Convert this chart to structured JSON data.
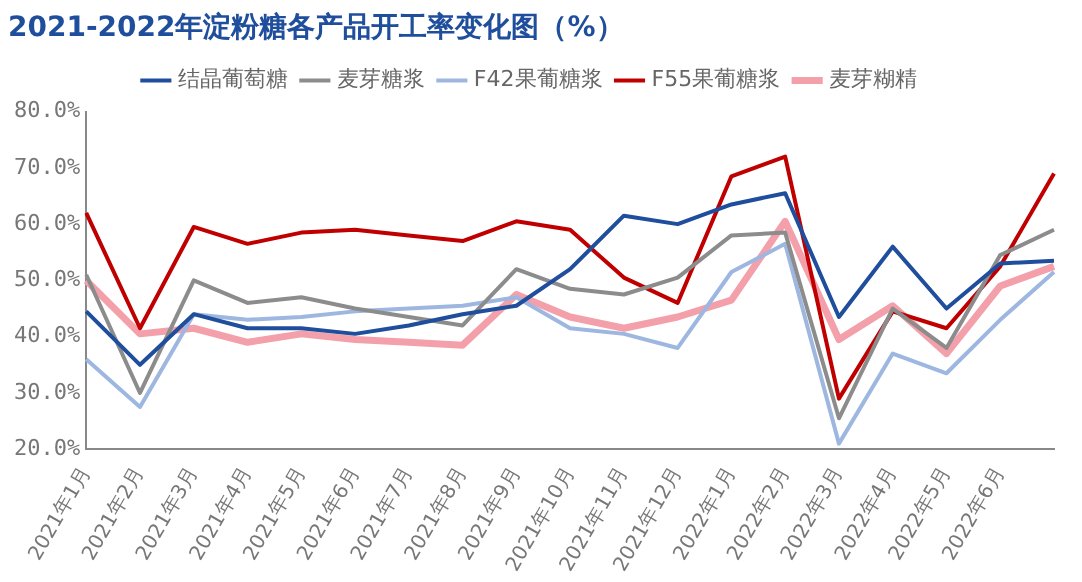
{
  "chart_data": {
    "type": "line",
    "title": "2021-2022年淀粉糖各产品开工率变化图（%）",
    "categories": [
      "2021年1月",
      "2021年2月",
      "2021年3月",
      "2021年4月",
      "2021年5月",
      "2021年6月",
      "2021年7月",
      "2021年8月",
      "2021年9月",
      "2021年10月",
      "2021年11月",
      "2021年12月",
      "2022年1月",
      "2022年2月",
      "2022年3月",
      "2022年4月",
      "2022年5月",
      "2022年6月",
      null
    ],
    "series": [
      {
        "name": "结晶葡萄糖",
        "color": "#1f4e9c",
        "values": [
          44.5,
          35,
          44,
          41.5,
          41.5,
          40.5,
          42,
          44,
          45.5,
          52,
          61.5,
          60,
          63.5,
          65.5,
          43.5,
          56,
          45,
          53,
          53.5
        ]
      },
      {
        "name": "麦芽糖浆",
        "color": "#8c8c8c",
        "values": [
          51,
          30,
          50,
          46,
          47,
          45,
          43.5,
          42,
          52,
          48.5,
          47.5,
          50.5,
          58,
          58.5,
          25.5,
          45,
          38,
          54.5,
          59
        ]
      },
      {
        "name": "F42果葡糖浆",
        "color": "#9db7e0",
        "values": [
          36,
          27.5,
          44,
          43,
          43.5,
          44.5,
          45,
          45.5,
          47,
          41.5,
          40.5,
          38,
          51.5,
          56.5,
          21,
          37,
          33.5,
          43,
          51.5
        ]
      },
      {
        "name": "F55果葡糖浆",
        "color": "#c00000",
        "values": [
          62,
          41.5,
          59.5,
          56.5,
          58.5,
          59,
          58,
          57,
          60.5,
          59,
          50.5,
          46,
          68.5,
          72,
          29,
          44.5,
          41.5,
          52.5,
          69
        ]
      },
      {
        "name": "麦芽糊精",
        "color": "#f4a0aa",
        "values": [
          50,
          40.5,
          41.5,
          39,
          40.5,
          39.5,
          39,
          38.5,
          47.5,
          43.5,
          41.5,
          43.5,
          46.5,
          60.5,
          39.5,
          45.5,
          37,
          49,
          52.5
        ]
      }
    ],
    "ylim": [
      20,
      80
    ],
    "yticks": [
      {
        "value": 20,
        "label": "20.0%"
      },
      {
        "value": 30,
        "label": "30.0%"
      },
      {
        "value": 40,
        "label": "40.0%"
      },
      {
        "value": 50,
        "label": "50.0%"
      },
      {
        "value": 60,
        "label": "60.0%"
      },
      {
        "value": 70,
        "label": "70.0%"
      },
      {
        "value": 80,
        "label": "80.0%"
      }
    ],
    "grid": false,
    "legend": "top",
    "marker": "none",
    "line_style": "solid"
  }
}
